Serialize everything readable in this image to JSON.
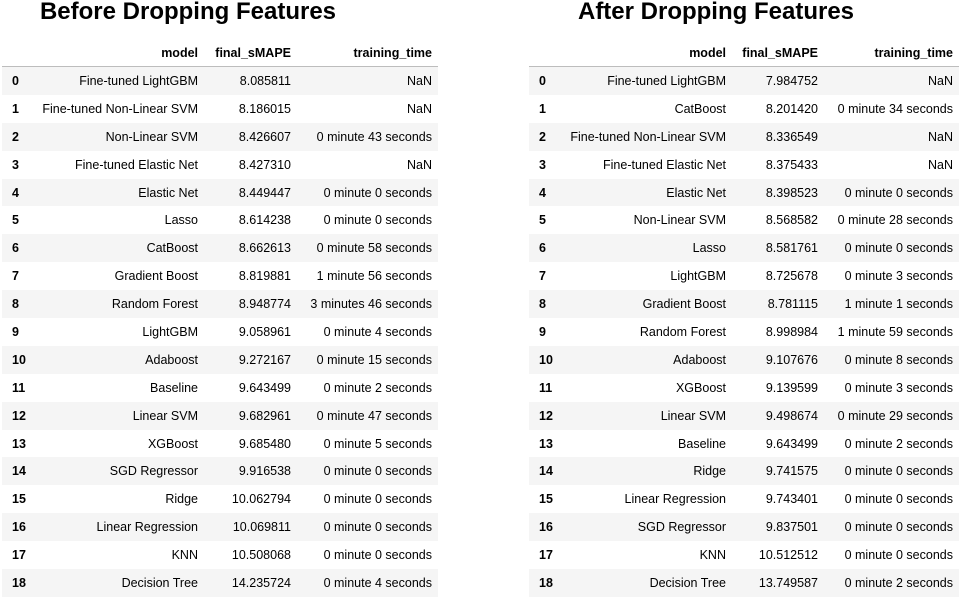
{
  "before": {
    "title": "Before Dropping Features",
    "columns": [
      "",
      "model",
      "final_sMAPE",
      "training_time"
    ],
    "rows": [
      [
        "0",
        "Fine-tuned LightGBM",
        "8.085811",
        "NaN"
      ],
      [
        "1",
        "Fine-tuned Non-Linear SVM",
        "8.186015",
        "NaN"
      ],
      [
        "2",
        "Non-Linear SVM",
        "8.426607",
        "0 minute 43 seconds"
      ],
      [
        "3",
        "Fine-tuned Elastic Net",
        "8.427310",
        "NaN"
      ],
      [
        "4",
        "Elastic Net",
        "8.449447",
        "0 minute 0 seconds"
      ],
      [
        "5",
        "Lasso",
        "8.614238",
        "0 minute 0 seconds"
      ],
      [
        "6",
        "CatBoost",
        "8.662613",
        "0 minute 58 seconds"
      ],
      [
        "7",
        "Gradient Boost",
        "8.819881",
        "1 minute 56 seconds"
      ],
      [
        "8",
        "Random Forest",
        "8.948774",
        "3 minutes 46 seconds"
      ],
      [
        "9",
        "LightGBM",
        "9.058961",
        "0 minute 4 seconds"
      ],
      [
        "10",
        "Adaboost",
        "9.272167",
        "0 minute 15 seconds"
      ],
      [
        "11",
        "Baseline",
        "9.643499",
        "0 minute 2 seconds"
      ],
      [
        "12",
        "Linear SVM",
        "9.682961",
        "0 minute 47 seconds"
      ],
      [
        "13",
        "XGBoost",
        "9.685480",
        "0 minute 5 seconds"
      ],
      [
        "14",
        "SGD Regressor",
        "9.916538",
        "0 minute 0 seconds"
      ],
      [
        "15",
        "Ridge",
        "10.062794",
        "0 minute 0 seconds"
      ],
      [
        "16",
        "Linear Regression",
        "10.069811",
        "0 minute 0 seconds"
      ],
      [
        "17",
        "KNN",
        "10.508068",
        "0 minute 0 seconds"
      ],
      [
        "18",
        "Decision Tree",
        "14.235724",
        "0 minute 4 seconds"
      ]
    ]
  },
  "after": {
    "title": "After Dropping Features",
    "columns": [
      "",
      "model",
      "final_sMAPE",
      "training_time"
    ],
    "rows": [
      [
        "0",
        "Fine-tuned LightGBM",
        "7.984752",
        "NaN"
      ],
      [
        "1",
        "CatBoost",
        "8.201420",
        "0 minute 34 seconds"
      ],
      [
        "2",
        "Fine-tuned Non-Linear SVM",
        "8.336549",
        "NaN"
      ],
      [
        "3",
        "Fine-tuned Elastic Net",
        "8.375433",
        "NaN"
      ],
      [
        "4",
        "Elastic Net",
        "8.398523",
        "0 minute 0 seconds"
      ],
      [
        "5",
        "Non-Linear SVM",
        "8.568582",
        "0 minute 28 seconds"
      ],
      [
        "6",
        "Lasso",
        "8.581761",
        "0 minute 0 seconds"
      ],
      [
        "7",
        "LightGBM",
        "8.725678",
        "0 minute 3 seconds"
      ],
      [
        "8",
        "Gradient Boost",
        "8.781115",
        "1 minute 1 seconds"
      ],
      [
        "9",
        "Random Forest",
        "8.998984",
        "1 minute 59 seconds"
      ],
      [
        "10",
        "Adaboost",
        "9.107676",
        "0 minute 8 seconds"
      ],
      [
        "11",
        "XGBoost",
        "9.139599",
        "0 minute 3 seconds"
      ],
      [
        "12",
        "Linear SVM",
        "9.498674",
        "0 minute 29 seconds"
      ],
      [
        "13",
        "Baseline",
        "9.643499",
        "0 minute 2 seconds"
      ],
      [
        "14",
        "Ridge",
        "9.741575",
        "0 minute 0 seconds"
      ],
      [
        "15",
        "Linear Regression",
        "9.743401",
        "0 minute 0 seconds"
      ],
      [
        "16",
        "SGD Regressor",
        "9.837501",
        "0 minute 0 seconds"
      ],
      [
        "17",
        "KNN",
        "10.512512",
        "0 minute 0 seconds"
      ],
      [
        "18",
        "Decision Tree",
        "13.749587",
        "0 minute 2 seconds"
      ]
    ]
  }
}
